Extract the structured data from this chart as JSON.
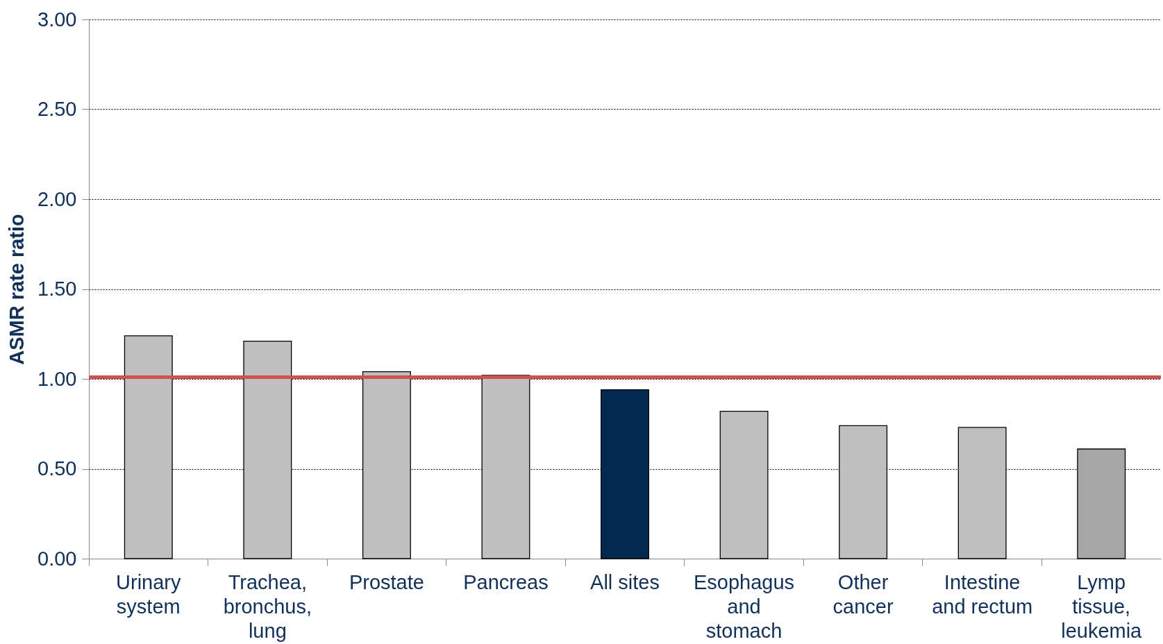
{
  "chart_data": {
    "type": "bar",
    "ylabel": "ASMR rate ratio",
    "categories": [
      "Urinary system",
      "Trachea, bronchus, lung",
      "Prostate",
      "Pancreas",
      "All sites",
      "Esophagus and stomach",
      "Other cancer",
      "Intestine and rectum",
      "Lymp tissue, leukemia"
    ],
    "values": [
      1.24,
      1.21,
      1.04,
      1.02,
      0.94,
      0.82,
      0.74,
      0.73,
      0.61
    ],
    "colors": [
      "#bfbfbf",
      "#bfbfbf",
      "#bfbfbf",
      "#bfbfbf",
      "#002850",
      "#bfbfbf",
      "#bfbfbf",
      "#bfbfbf",
      "#a6a6a6"
    ],
    "ylim": [
      0,
      3
    ],
    "yticks": [
      {
        "value": 0,
        "label": "0.00"
      },
      {
        "value": 0.5,
        "label": "0.50"
      },
      {
        "value": 1,
        "label": "1.00"
      },
      {
        "value": 1.5,
        "label": "1.50"
      },
      {
        "value": 2,
        "label": "2.00"
      },
      {
        "value": 2.5,
        "label": "2.50"
      },
      {
        "value": 3,
        "label": "3.00"
      }
    ],
    "grid": "y",
    "ref_lines": [
      {
        "axis": "y",
        "value": 1.01,
        "color": "#d0504c"
      }
    ]
  }
}
